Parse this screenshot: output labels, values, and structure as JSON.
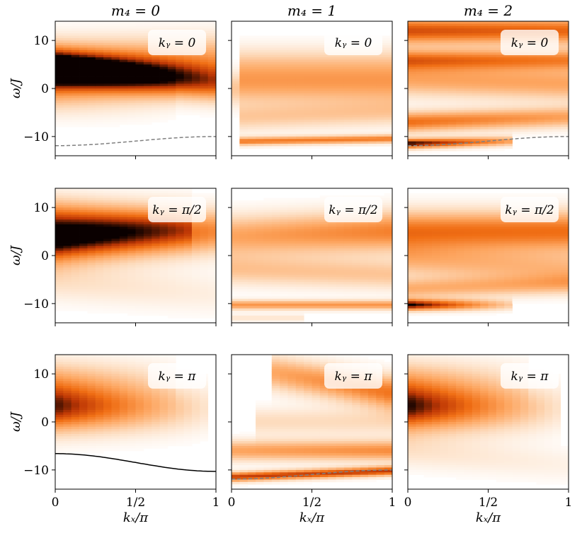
{
  "chart_data": {
    "type": "heatmap",
    "column_titles": [
      "m₄ = 0",
      "m₄ = 1",
      "m₄ = 2"
    ],
    "row_labels": [
      "kᵧ = 0",
      "kᵧ = π/2",
      "kᵧ = π"
    ],
    "xlabel": "kₓ/π",
    "ylabel": "ω/J",
    "xlim": [
      0,
      1
    ],
    "ylim": [
      -14,
      14
    ],
    "xticks": [
      0,
      0.5,
      1
    ],
    "xtick_labels": [
      "0",
      "1/2",
      "1"
    ],
    "yticks": [
      10,
      0,
      -10
    ],
    "ytick_labels": [
      "10",
      "0",
      "−10"
    ],
    "colormap": "Oranges",
    "colors": {
      "dashed_line": "#808080",
      "solid_line": "#000000"
    },
    "panels": [
      {
        "row": 0,
        "col": 0,
        "label": "kᵧ = 0",
        "bands": [
          {
            "w0": 4,
            "w1": 1,
            "k0": 0,
            "k1": 1,
            "width": 2.6,
            "amp": 1.0,
            "decay": 0.35
          },
          {
            "w0": 5,
            "w1": 6,
            "k0": 0,
            "k1": 1,
            "width": 3.5,
            "amp": 0.55,
            "decay": 0.2
          },
          {
            "w0": -1,
            "w1": -2,
            "k0": 0,
            "k1": 0.7,
            "width": 3,
            "amp": 0.3,
            "decay": 0.8
          }
        ],
        "curve": {
          "style": "dashed",
          "w_start": -11.9,
          "w_end": -10.0
        }
      },
      {
        "row": 0,
        "col": 1,
        "label": "kᵧ = 0",
        "bands": [
          {
            "w0": 4,
            "w1": 4,
            "k0": 0.1,
            "k1": 1,
            "width": 3,
            "amp": 0.35,
            "decay": 0
          },
          {
            "w0": 0,
            "w1": 0,
            "k0": 0.05,
            "k1": 1,
            "width": 2.5,
            "amp": 0.3,
            "decay": 0
          },
          {
            "w0": -6,
            "w1": -5,
            "k0": 0.1,
            "k1": 1,
            "width": 2,
            "amp": 0.28,
            "decay": 0
          },
          {
            "w0": -11,
            "w1": -10.5,
            "k0": 0.1,
            "k1": 1,
            "width": 0.6,
            "amp": 0.6,
            "decay": 0
          }
        ]
      },
      {
        "row": 0,
        "col": 2,
        "label": "kᵧ = 0",
        "bands": [
          {
            "w0": 12,
            "w1": 12,
            "k0": 0,
            "k1": 1,
            "width": 2,
            "amp": 0.75,
            "decay": 0.1
          },
          {
            "w0": 6,
            "w1": 6,
            "k0": 0,
            "k1": 1,
            "width": 1.5,
            "amp": 0.6,
            "decay": 0.1
          },
          {
            "w0": 2,
            "w1": 1,
            "k0": 0,
            "k1": 1,
            "width": 2.5,
            "amp": 0.45,
            "decay": 0
          },
          {
            "w0": -7,
            "w1": -6,
            "k0": 0,
            "k1": 1,
            "width": 1.5,
            "amp": 0.65,
            "decay": 0.3
          },
          {
            "w0": -11.5,
            "w1": -11,
            "k0": 0,
            "k1": 0.6,
            "width": 0.7,
            "amp": 1.0,
            "decay": 0.5
          }
        ],
        "curve": {
          "style": "dashed",
          "w_start": -11.9,
          "w_end": -10.0
        }
      },
      {
        "row": 1,
        "col": 0,
        "label": "kᵧ = π/2",
        "bands": [
          {
            "w0": 3,
            "w1": 5,
            "k0": 0,
            "k1": 1,
            "width": 3.2,
            "amp": 1.0,
            "decay": 0.45
          },
          {
            "w0": 8,
            "w1": 7,
            "k0": 0,
            "k1": 0.8,
            "width": 3,
            "amp": 0.5,
            "decay": 0.5
          },
          {
            "w0": -5,
            "w1": -8,
            "k0": 0,
            "k1": 1,
            "width": 3,
            "amp": 0.18,
            "decay": 0.5
          }
        ]
      },
      {
        "row": 1,
        "col": 1,
        "label": "kᵧ = π/2",
        "bands": [
          {
            "w0": 4,
            "w1": 5,
            "k0": 0,
            "k1": 1,
            "width": 3,
            "amp": 0.45,
            "decay": -0.3
          },
          {
            "w0": -3,
            "w1": -4,
            "k0": 0,
            "k1": 1,
            "width": 2.2,
            "amp": 0.3,
            "decay": 0
          },
          {
            "w0": -10.3,
            "w1": -10.3,
            "k0": 0,
            "k1": 1,
            "width": 0.7,
            "amp": 0.5,
            "decay": 0
          },
          {
            "w0": -13,
            "w1": -13,
            "k0": 0,
            "k1": 0.4,
            "width": 0.5,
            "amp": 0.15,
            "decay": 0
          }
        ]
      },
      {
        "row": 1,
        "col": 2,
        "label": "kᵧ = π/2",
        "bands": [
          {
            "w0": 5,
            "w1": 5,
            "k0": 0,
            "k1": 1,
            "width": 3,
            "amp": 0.65,
            "decay": 0
          },
          {
            "w0": -1,
            "w1": -3,
            "k0": 0,
            "k1": 1,
            "width": 2.5,
            "amp": 0.35,
            "decay": 0
          },
          {
            "w0": -7,
            "w1": -6,
            "k0": 0,
            "k1": 1,
            "width": 1.5,
            "amp": 0.4,
            "decay": 0.2
          },
          {
            "w0": -10.3,
            "w1": -10.3,
            "k0": 0,
            "k1": 0.6,
            "width": 0.8,
            "amp": 1.0,
            "decay": 0.7
          }
        ]
      },
      {
        "row": 2,
        "col": 0,
        "label": "kᵧ = π",
        "bands": [
          {
            "w0": 3,
            "w1": 3,
            "k0": 0,
            "k1": 0.9,
            "width": 3.5,
            "amp": 0.9,
            "decay": 0.8
          },
          {
            "w0": 9,
            "w1": 9,
            "k0": 0,
            "k1": 0.7,
            "width": 3,
            "amp": 0.3,
            "decay": 0.7
          }
        ],
        "curve": {
          "style": "solid",
          "w_start": -6.6,
          "w_end": -10.3
        }
      },
      {
        "row": 2,
        "col": 1,
        "label": "kᵧ = π",
        "bands": [
          {
            "w0": 10,
            "w1": 6,
            "k0": 0.3,
            "k1": 1,
            "width": 2.5,
            "amp": 0.45,
            "decay": -0.4
          },
          {
            "w0": 0,
            "w1": 0,
            "k0": 0.2,
            "k1": 1,
            "width": 2,
            "amp": 0.2,
            "decay": 0
          },
          {
            "w0": -6,
            "w1": -6,
            "k0": 0,
            "k1": 1,
            "width": 1.5,
            "amp": 0.45,
            "decay": -0.2
          },
          {
            "w0": -11.5,
            "w1": -10.2,
            "k0": 0,
            "k1": 1,
            "width": 0.7,
            "amp": 0.8,
            "decay": 0
          }
        ],
        "curve": {
          "style": "dashed",
          "w_start": -11.9,
          "w_end": -10.0
        }
      },
      {
        "row": 2,
        "col": 2,
        "label": "kᵧ = π",
        "bands": [
          {
            "w0": 3,
            "w1": 3,
            "k0": 0,
            "k1": 0.9,
            "width": 3.5,
            "amp": 0.95,
            "decay": 0.8
          },
          {
            "w0": 9,
            "w1": 9,
            "k0": 0,
            "k1": 0.7,
            "width": 3,
            "amp": 0.3,
            "decay": 0.7
          },
          {
            "w0": -6,
            "w1": -9,
            "k0": 0,
            "k1": 1,
            "width": 2.5,
            "amp": 0.15,
            "decay": 0.5
          }
        ]
      }
    ]
  }
}
